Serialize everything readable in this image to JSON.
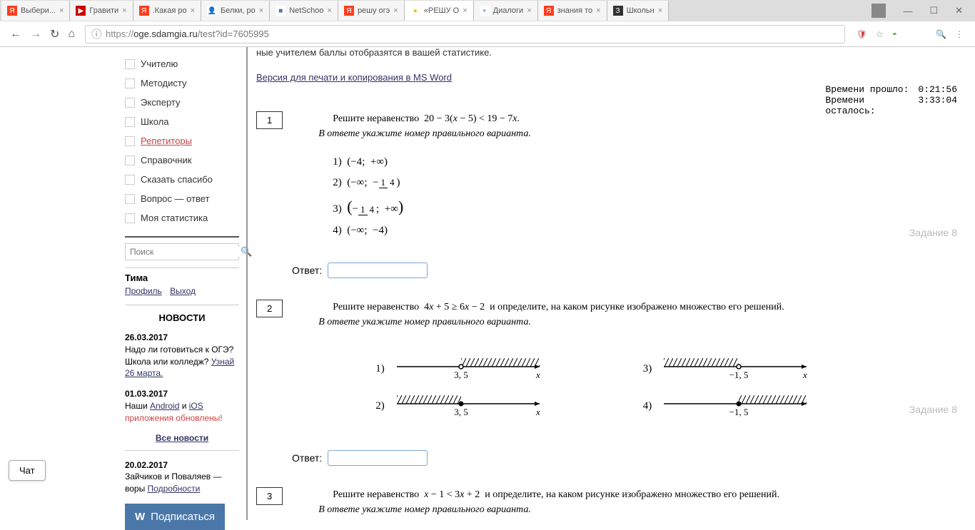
{
  "browser": {
    "tabs": [
      {
        "icon": "Я",
        "icon_bg": "#fc3f1d",
        "icon_color": "#fff",
        "title": "Выбери..."
      },
      {
        "icon": "▶",
        "icon_bg": "#cc0000",
        "icon_color": "#fff",
        "title": "Гравити"
      },
      {
        "icon": "Я",
        "icon_bg": "#fc3f1d",
        "icon_color": "#fff",
        "title": ".Какая ро"
      },
      {
        "icon": "👤",
        "icon_bg": "#fff",
        "icon_color": "#888",
        "title": "Белки, ро"
      },
      {
        "icon": "■",
        "icon_bg": "#fff",
        "icon_color": "#4a76a8",
        "title": "NetSchoo"
      },
      {
        "icon": "Я",
        "icon_bg": "#fc3f1d",
        "icon_color": "#fff",
        "title": "решу огэ"
      },
      {
        "icon": "●",
        "icon_bg": "#fff",
        "icon_color": "#f0c020",
        "title": "«РЕШУ О",
        "active": true
      },
      {
        "icon": "▪",
        "icon_bg": "#fff",
        "icon_color": "#4a90d9",
        "title": "Диалоги"
      },
      {
        "icon": "Я",
        "icon_bg": "#fc3f1d",
        "icon_color": "#fff",
        "title": "знания то"
      },
      {
        "icon": "З",
        "icon_bg": "#333",
        "icon_color": "#fff",
        "title": "Школьн"
      }
    ],
    "url_prefix": "https://",
    "url_host": "oge.sdamgia.ru",
    "url_path": "/test?id=7605995"
  },
  "sidebar": {
    "items": [
      {
        "label": "Учителю"
      },
      {
        "label": "Методисту"
      },
      {
        "label": "Эксперту"
      },
      {
        "label": "Школа"
      },
      {
        "label": "Репетиторы",
        "red": true
      },
      {
        "label": "Справочник"
      },
      {
        "label": "Сказать спасибо"
      },
      {
        "label": "Вопрос — ответ"
      },
      {
        "label": "Моя статистика"
      }
    ],
    "search_placeholder": "Поиск",
    "user": {
      "name": "Тима",
      "profile": "Профиль",
      "exit": "Выход"
    },
    "news_title": "НОВОСТИ",
    "news": [
      {
        "date": "26.03.2017",
        "text": "Надо ли готовиться к ОГЭ? Школа или колледж? ",
        "link": "Узнай 26 марта."
      },
      {
        "date": "01.03.2017",
        "text_parts": [
          "Наши ",
          "Android",
          " и ",
          "iOS"
        ],
        "red_text": "приложения обновлены!"
      }
    ],
    "all_news": "Все новости",
    "news3": {
      "date": "20.02.2017",
      "text": "Зайчиков и Поваляев — воры ",
      "link": "Подробности"
    },
    "vk": "Подписаться"
  },
  "main": {
    "top_text": "ные учителем баллы отобразятся в вашей статистике.",
    "print_link": "Версия для печати и копирования в MS Word",
    "timer": {
      "elapsed_label": "Времени прошло:",
      "elapsed": "0:21:56",
      "remain_label": "Времени осталось:",
      "remain": "3:33:04"
    },
    "tasks": [
      {
        "num": "1",
        "prompt": "Решите неравенство  20 − 3(x − 5) < 19 − 7x.",
        "instr": "В ответе укажите номер правильного варианта.",
        "options": [
          "1)  (−4;  +∞)",
          "2)  (−∞;  −¼)",
          "3)  (−¼;  +∞)",
          "4)  (−∞;  −4)"
        ],
        "label": "Задание 8",
        "answer_label": "Ответ:"
      },
      {
        "num": "2",
        "prompt": "Решите неравенство  4x + 5 ≥ 6x − 2  и определите, на каком рисунке изображено множество его решений.",
        "instr": "В ответе укажите номер правильного варианта.",
        "label": "Задание 8",
        "answer_label": "Ответ:"
      },
      {
        "num": "3",
        "prompt": "Решите неравенство  x − 1 < 3x + 2  и определите, на каком рисунке изображено множество его решений.",
        "instr": "В ответе укажите номер правильного варианта."
      }
    ]
  },
  "chat": "Чат"
}
